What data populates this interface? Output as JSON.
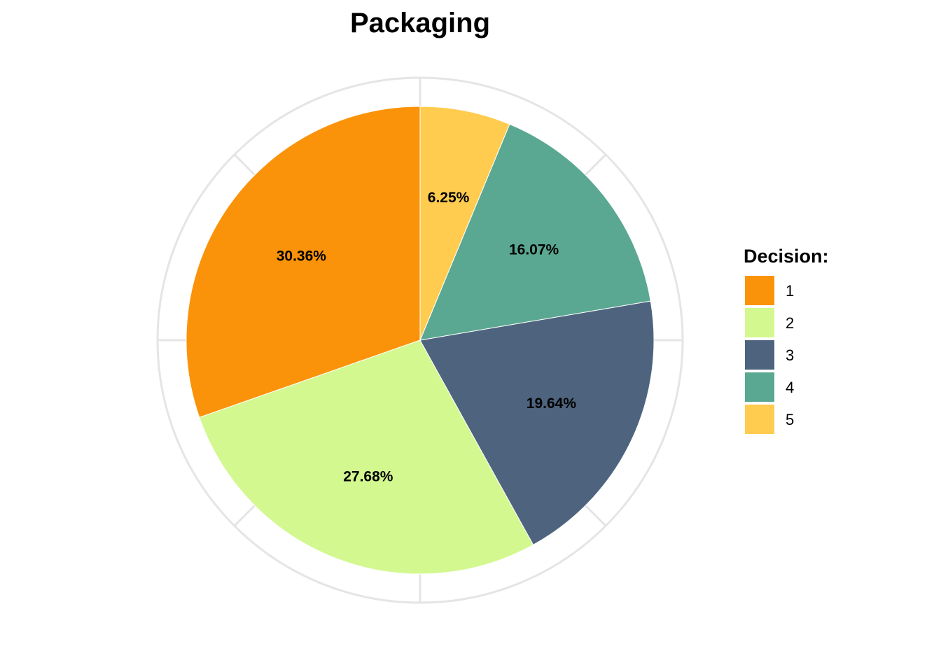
{
  "chart_data": {
    "type": "pie",
    "title": "Packaging",
    "start": "12 o'clock, counterclockwise",
    "categories": [
      "1",
      "2",
      "3",
      "4",
      "5"
    ],
    "values": [
      30.36,
      27.68,
      19.64,
      16.07,
      6.25
    ],
    "labels": [
      "30.36%",
      "27.68%",
      "19.64%",
      "16.07%",
      "6.25%"
    ],
    "colors": [
      "#FB930A",
      "#D3F88F",
      "#4E647E",
      "#5AA891",
      "#FFCC4F"
    ],
    "legend": {
      "title": "Decision:",
      "placement": "right",
      "entries": [
        "1",
        "2",
        "3",
        "4",
        "5"
      ]
    },
    "grid": true
  }
}
